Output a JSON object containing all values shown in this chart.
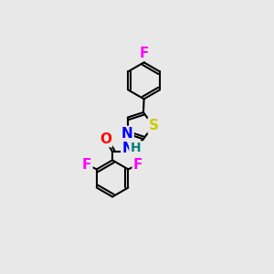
{
  "background_color": "#e8e8e8",
  "line_color": "#000000",
  "bond_lw": 1.5,
  "atom_colors": {
    "F": "#ff00ff",
    "S": "#cccc00",
    "N": "#0000ff",
    "O": "#ff0000",
    "H": "#008080"
  },
  "font_size": 11
}
